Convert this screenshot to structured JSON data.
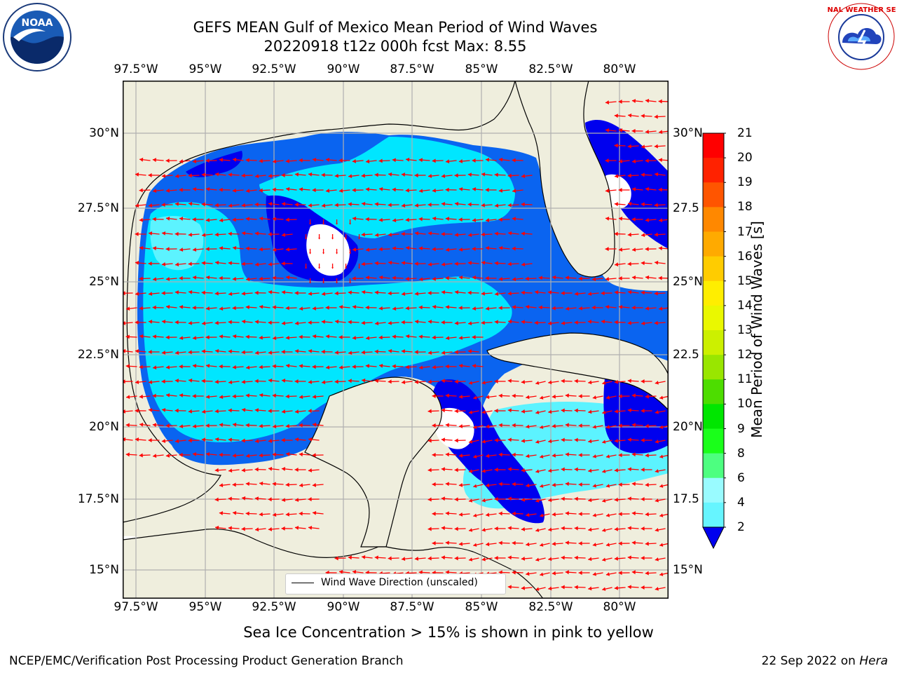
{
  "header": {
    "title": "GEFS MEAN Gulf of Mexico Mean Period of Wind Waves",
    "subtitle": "20220918 t12z 000h fcst   Max: 8.55"
  },
  "logos": {
    "left": "NOAA",
    "right": "NATIONAL WEATHER SERVICE"
  },
  "axes": {
    "longitude_labels": [
      "97.5°W",
      "95°W",
      "92.5°W",
      "90°W",
      "87.5°W",
      "85°W",
      "82.5°W",
      "80°W"
    ],
    "latitude_labels": [
      "30°N",
      "27.5°N",
      "25°N",
      "22.5°N",
      "20°N",
      "17.5°N",
      "15°N"
    ],
    "latitude_labels_right": [
      "30°N",
      "27.5",
      "25°N",
      "22.5",
      "20°N",
      "17.5",
      "15°N"
    ]
  },
  "colorbar": {
    "label": "Mean Period of Wind Waves [s]",
    "ticks": [
      "2",
      "4",
      "6",
      "8",
      "9",
      "10",
      "11",
      "12",
      "13",
      "14",
      "15",
      "16",
      "17",
      "18",
      "19",
      "20",
      "21"
    ],
    "colors": [
      "#0a64f0",
      "#00e1ff",
      "#33f0ff",
      "#66f5ff",
      "#99fbff",
      "#4dff80",
      "#1aff1a",
      "#00e600",
      "#4ddd00",
      "#99e600",
      "#ccf000",
      "#eaf800",
      "#ffee00",
      "#ffcc00",
      "#ffaa00",
      "#ff8800",
      "#ff5500",
      "#ff2200",
      "#ff0000"
    ],
    "extend_color": "#0000ee"
  },
  "legend": {
    "label": "Wind Wave Direction (unscaled)"
  },
  "caption": "Sea Ice Concentration > 15% is shown in pink to yellow",
  "footer": {
    "left": "NCEP/EMC/Verification Post Processing Product Generation Branch",
    "right_date": "22 Sep 2022 on ",
    "right_host": "Hera"
  },
  "colors": {
    "land": "#efeedd",
    "deep_blue": "#0000ee",
    "blue": "#0a64f0",
    "cyan": "#00e6ff",
    "light_cyan": "#5cf3ff",
    "arrow": "#ff0000",
    "grid": "#b0b0b0"
  }
}
